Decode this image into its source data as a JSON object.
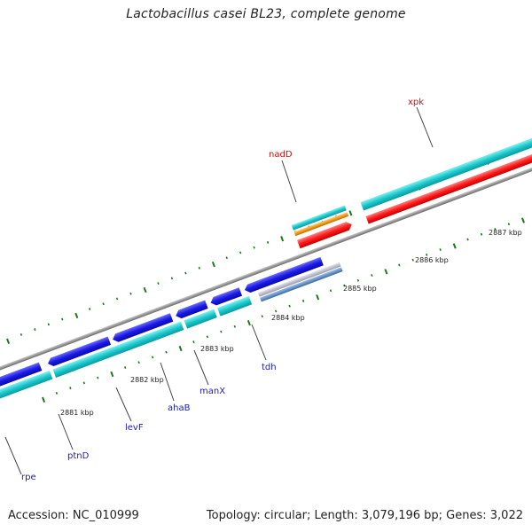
{
  "title": "Lactobacillus casei BL23, complete genome",
  "footer": {
    "accession": "Accession: NC_010999",
    "topology": "Topology: circular; Length: 3,079,196 bp; Genes: 3,022"
  },
  "colors": {
    "backbone": "#8a8a8a",
    "cds_forward": "#ff1a1a",
    "cds_reverse": "#1a1ae6",
    "rna_orange": "#f29a1a",
    "feature_cyan": "#1ac8cc",
    "feature_gray": "#b4b4c8",
    "feature_steel": "#4a78b4",
    "tick": "#1a7a1a",
    "label_forward": "#cc1111",
    "label_reverse": "#1a1ab8"
  },
  "ticks": [
    "2881 kbp",
    "2882 kbp",
    "2883 kbp",
    "2884 kbp",
    "2885 kbp",
    "2886 kbp",
    "2887 kbp"
  ],
  "genes_forward": [
    "nadD",
    "xpk"
  ],
  "genes_reverse": [
    "rpe",
    "ptnD",
    "levF",
    "ahaB",
    "manX",
    "tdh"
  ]
}
